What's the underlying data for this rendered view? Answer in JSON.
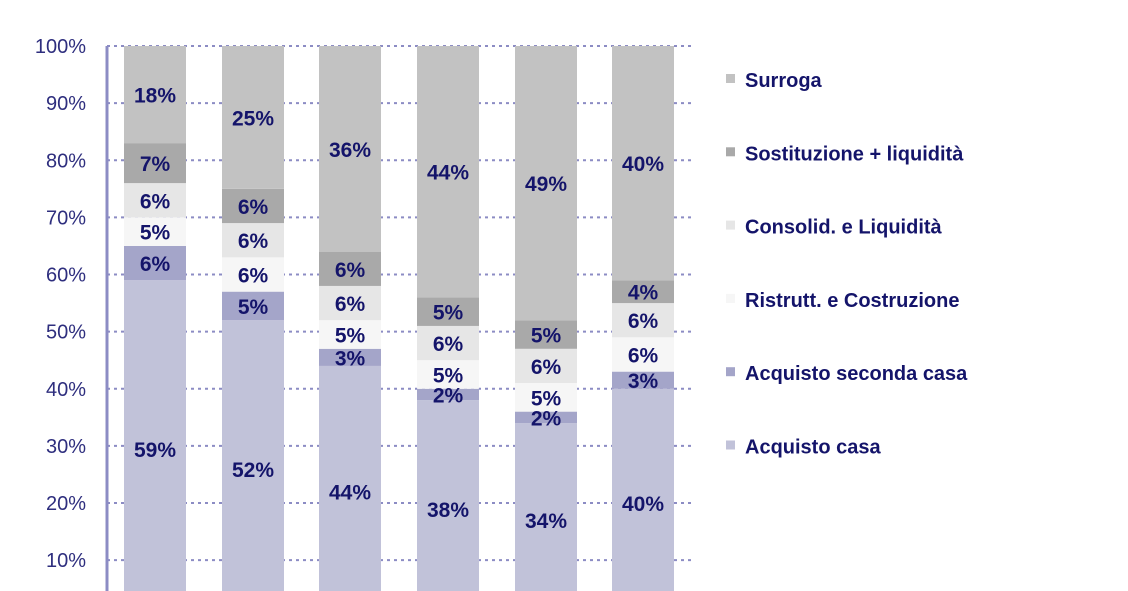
{
  "chart_data": {
    "type": "bar",
    "stacked": true,
    "title": "",
    "xlabel": "",
    "ylabel": "",
    "ylim": [
      0,
      100
    ],
    "yticks": [
      "10%",
      "20%",
      "30%",
      "40%",
      "50%",
      "60%",
      "70%",
      "80%",
      "90%",
      "100%"
    ],
    "grid": true,
    "legend_placement": "right",
    "bar_count": 6,
    "series": [
      {
        "name": "Acquisto casa",
        "color": "#c1c2d9",
        "values": [
          59,
          52,
          44,
          38,
          34,
          40
        ]
      },
      {
        "name": "Acquisto seconda casa",
        "color": "#a4a5c9",
        "values": [
          6,
          5,
          3,
          2,
          2,
          3
        ]
      },
      {
        "name": "Ristrutt. e Costruzione",
        "color": "#f6f6f6",
        "values": [
          5,
          6,
          5,
          5,
          5,
          6
        ]
      },
      {
        "name": "Consolid. e Liquidità",
        "color": "#e6e6e6",
        "values": [
          6,
          6,
          6,
          6,
          6,
          6
        ]
      },
      {
        "name": "Sostituzione + liquidità",
        "color": "#a9a9a9",
        "values": [
          7,
          6,
          6,
          5,
          5,
          4
        ]
      },
      {
        "name": "Surroga",
        "color": "#c2c2c2",
        "values": [
          18,
          25,
          36,
          44,
          49,
          40
        ]
      }
    ],
    "label_color": "#14146a",
    "axis_color": "#2e2e7e"
  }
}
